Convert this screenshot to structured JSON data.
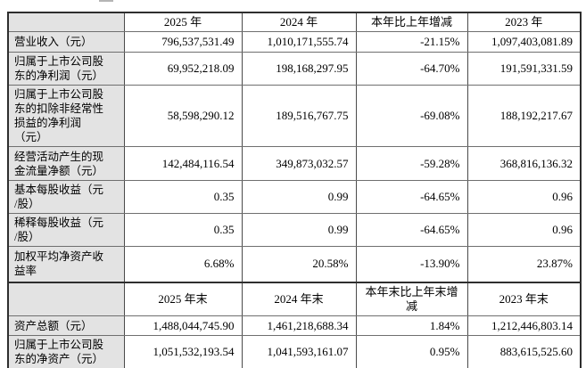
{
  "table": {
    "colors": {
      "label_background": "#e3e3e3",
      "border": "#4a4a4a",
      "outer_border": "#2e2e2e",
      "text": "#000000"
    },
    "sections": [
      {
        "header": [
          "",
          "2025 年",
          "2024 年",
          "本年比上年增减",
          "2023 年"
        ],
        "rows": [
          {
            "label": "营业收入（元）",
            "values": [
              "796,537,531.49",
              "1,010,171,555.74",
              "-21.15%",
              "1,097,403,081.89"
            ]
          },
          {
            "label": "归属于上市公司股\n东的净利润（元）",
            "values": [
              "69,952,218.09",
              "198,168,297.95",
              "-64.70%",
              "191,591,331.59"
            ]
          },
          {
            "label": "归属于上市公司股\n东的扣除非经常性\n损益的净利润\n（元）",
            "values": [
              "58,598,290.12",
              "189,516,767.75",
              "-69.08%",
              "188,192,217.67"
            ]
          },
          {
            "label": "经营活动产生的现\n金流量净额（元）",
            "values": [
              "142,484,116.54",
              "349,873,032.57",
              "-59.28%",
              "368,816,136.32"
            ]
          },
          {
            "label": "基本每股收益（元\n/股）",
            "values": [
              "0.35",
              "0.99",
              "-64.65%",
              "0.96"
            ]
          },
          {
            "label": "稀释每股收益（元\n/股）",
            "values": [
              "0.35",
              "0.99",
              "-64.65%",
              "0.96"
            ]
          },
          {
            "label": "加权平均净资产收\n益率",
            "values": [
              "6.68%",
              "20.58%",
              "-13.90%",
              "23.87%"
            ]
          }
        ]
      },
      {
        "header": [
          "",
          "2025 年末",
          "2024 年末",
          "本年末比上年末增\n减",
          "2023 年末"
        ],
        "rows": [
          {
            "label": "资产总额（元）",
            "values": [
              "1,488,044,745.90",
              "1,461,218,688.34",
              "1.84%",
              "1,212,446,803.14"
            ]
          },
          {
            "label": "归属于上市公司股\n东的净资产（元）",
            "values": [
              "1,051,532,193.54",
              "1,041,593,161.07",
              "0.95%",
              "883,615,525.60"
            ]
          }
        ]
      }
    ]
  }
}
